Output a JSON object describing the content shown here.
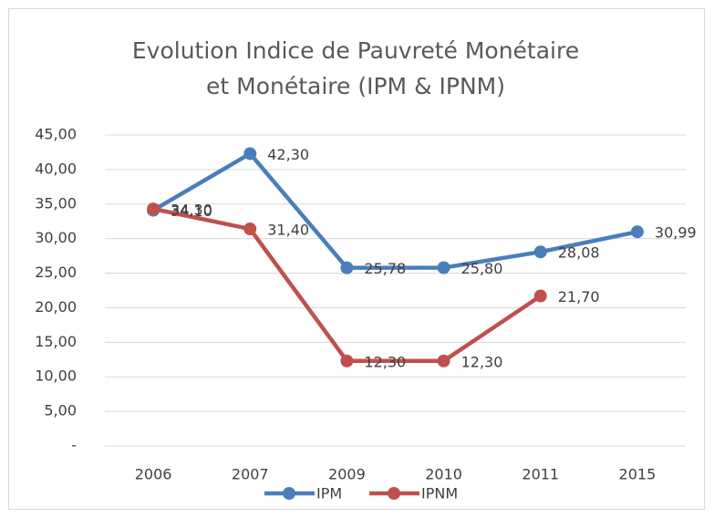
{
  "chart_data": {
    "type": "line",
    "title": "Evolution Indice de Pauvreté Monétaire et Monétaire (IPM & IPNM)",
    "categories": [
      "2006",
      "2007",
      "2009",
      "2010",
      "2011",
      "2015"
    ],
    "series": [
      {
        "name": "IPM",
        "color": "#4a7ebb",
        "values": [
          34.1,
          42.3,
          25.78,
          25.8,
          28.08,
          30.99
        ],
        "value_labels": [
          "34,10",
          "42,30",
          "25,78",
          "25,80",
          "28,08",
          "30,99"
        ]
      },
      {
        "name": "IPNM",
        "color": "#c0504d",
        "values": [
          34.3,
          31.4,
          12.3,
          12.3,
          21.7,
          null
        ],
        "value_labels": [
          "34,30",
          "31,40",
          "12,30",
          "12,30",
          "21,70",
          null
        ]
      }
    ],
    "ylim": [
      0,
      45
    ],
    "yticks": [
      {
        "value": 0,
        "label": "-"
      },
      {
        "value": 5,
        "label": "5,00"
      },
      {
        "value": 10,
        "label": "10,00"
      },
      {
        "value": 15,
        "label": "15,00"
      },
      {
        "value": 20,
        "label": "20,00"
      },
      {
        "value": 25,
        "label": "25,00"
      },
      {
        "value": 30,
        "label": "30,00"
      },
      {
        "value": 35,
        "label": "35,00"
      },
      {
        "value": 40,
        "label": "40,00"
      },
      {
        "value": 45,
        "label": "45,00"
      }
    ],
    "grid": true,
    "legend": "bottom"
  }
}
